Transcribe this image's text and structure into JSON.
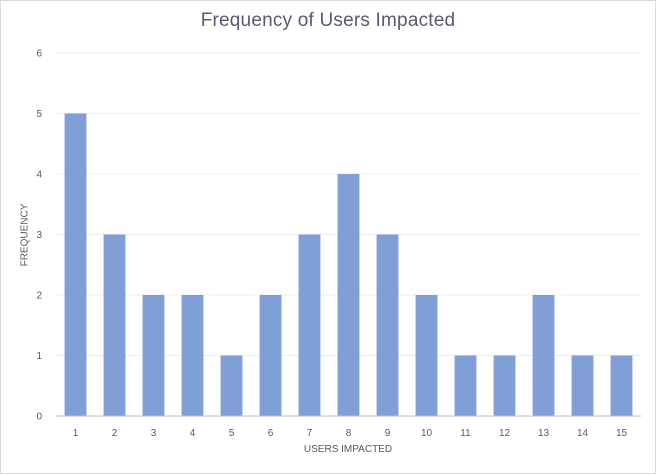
{
  "chart_data": {
    "type": "bar",
    "title": "Frequency of Users Impacted",
    "xlabel": "USERS IMPACTED",
    "ylabel": "FREQUENCY",
    "categories": [
      "1",
      "2",
      "3",
      "4",
      "5",
      "6",
      "7",
      "8",
      "9",
      "10",
      "11",
      "12",
      "13",
      "14",
      "15"
    ],
    "values": [
      5,
      3,
      2,
      2,
      1,
      2,
      3,
      4,
      3,
      2,
      1,
      1,
      2,
      1,
      1
    ],
    "ylim": [
      0,
      6
    ],
    "yticks": [
      "0",
      "1",
      "2",
      "3",
      "4",
      "5",
      "6"
    ],
    "grid": true,
    "bar_color": "#7f9fd6",
    "grid_color": "#ececec",
    "axis_color": "#bfbfbf"
  }
}
